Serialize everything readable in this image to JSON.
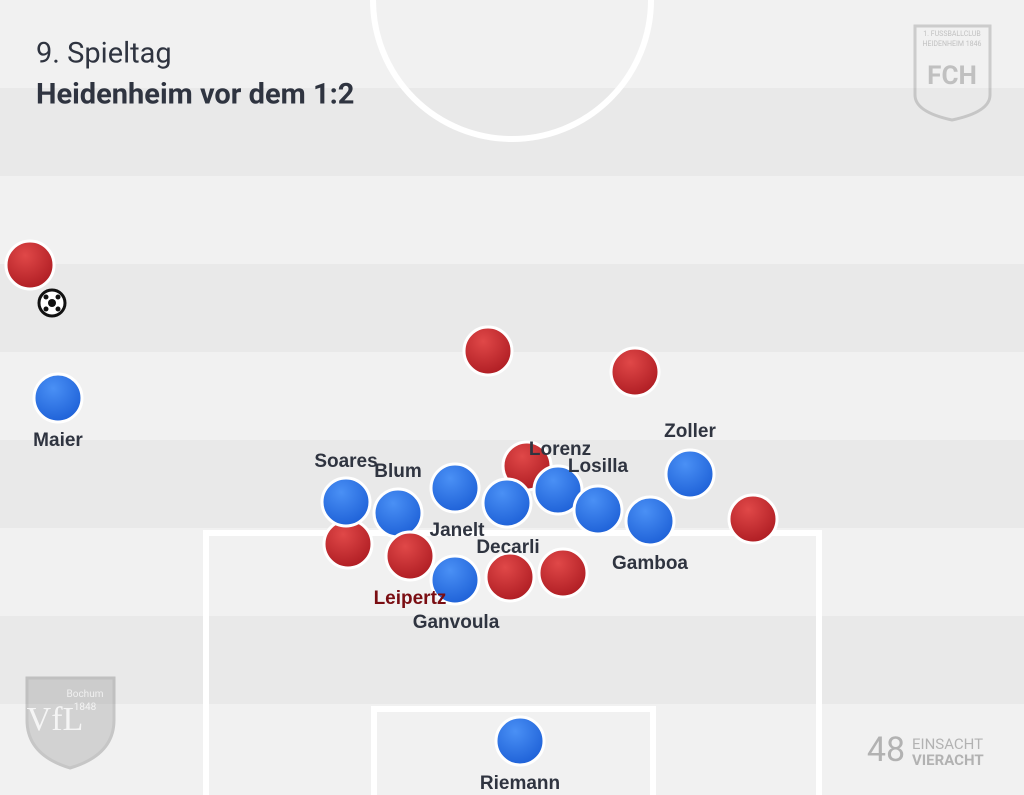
{
  "header": {
    "subtitle": "9. Spieltag",
    "title": "Heidenheim vor dem 1:2"
  },
  "players": {
    "maier": "Maier",
    "soares": "Soares",
    "blum": "Blum",
    "lorenz": "Lorenz",
    "losilla": "Losilla",
    "zoller": "Zoller",
    "janelt": "Janelt",
    "decarli": "Decarli",
    "gamboa": "Gamboa",
    "leipertz": "Leipertz",
    "ganvoula": "Ganvoula",
    "riemann": "Riemann"
  },
  "logos": {
    "heidenheim": {
      "line1": "1. FUSSBALLCLUB",
      "line2": "HEIDENHEIM 1846",
      "short": "FCH"
    },
    "bochum": {
      "name": "Bochum",
      "year": "1848",
      "short": "VfL"
    },
    "brand": {
      "number": "48",
      "line1": "EINSACHT",
      "line2": "VIERACHT"
    }
  }
}
